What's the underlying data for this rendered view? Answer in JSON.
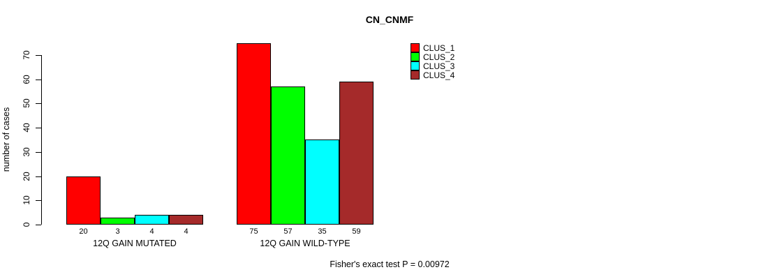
{
  "chart_data": {
    "type": "bar",
    "title": "CN_CNMF",
    "ylabel": "number of cases",
    "xlabel": "",
    "ylim": [
      0,
      75
    ],
    "yticks": [
      0,
      10,
      20,
      30,
      40,
      50,
      60,
      70
    ],
    "grid": false,
    "legend_position": "top-right",
    "categories": [
      "12Q GAIN MUTATED",
      "12Q GAIN WILD-TYPE"
    ],
    "series": [
      {
        "name": "CLUS_1",
        "color": "#ff0000",
        "values": [
          20,
          75
        ]
      },
      {
        "name": "CLUS_2",
        "color": "#00ff00",
        "values": [
          3,
          57
        ]
      },
      {
        "name": "CLUS_3",
        "color": "#00ffff",
        "values": [
          4,
          35
        ]
      },
      {
        "name": "CLUS_4",
        "color": "#a52a2a",
        "values": [
          4,
          59
        ]
      }
    ],
    "bar_outline_color": "#000000",
    "annotation": "Fisher's exact test P = 0.00972"
  }
}
